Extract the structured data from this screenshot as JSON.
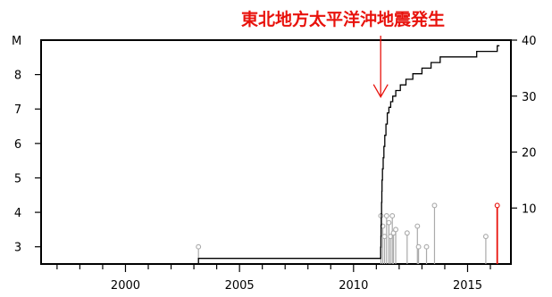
{
  "chart_data": {
    "type": "line",
    "title": "",
    "annotation": {
      "text": "東北地方太平洋沖地震発生",
      "x": 2011.19,
      "y": 7.3,
      "color": "#e8120c"
    },
    "xlabel": "",
    "ylabel_left": "M",
    "xlim": [
      1996.3,
      2016.9
    ],
    "ylim_left": [
      2.5,
      9.0
    ],
    "ylim_right": [
      0,
      40
    ],
    "x_ticks": [
      2000,
      2005,
      2010,
      2015
    ],
    "y_ticks_left": [
      3,
      4,
      5,
      6,
      7,
      8
    ],
    "y_ticks_right": [
      10,
      20,
      30,
      40
    ],
    "grid": false,
    "series": [
      {
        "axis": "right",
        "style": "step",
        "color": "#000000",
        "x": [
          1996.3,
          2003.2,
          2011.19,
          2011.2,
          2011.21,
          2011.22,
          2011.23,
          2011.24,
          2011.25,
          2011.27,
          2011.3,
          2011.33,
          2011.37,
          2011.42,
          2011.48,
          2011.55,
          2011.63,
          2011.72,
          2011.85,
          2012.05,
          2012.3,
          2012.6,
          2013.0,
          2013.4,
          2013.8,
          2014.4,
          2015.4,
          2016.3,
          2016.4
        ],
        "y": [
          0,
          1,
          3,
          5,
          7,
          9,
          11,
          13,
          15,
          17,
          19,
          21,
          23,
          25,
          27,
          28,
          29,
          30,
          31,
          32,
          33,
          34,
          35,
          36,
          37,
          37,
          38,
          39,
          39
        ]
      },
      {
        "axis": "left",
        "style": "stem",
        "color": "#aaaaaa",
        "x": [
          2003.2,
          2011.2,
          2011.28,
          2011.36,
          2011.45,
          2011.55,
          2011.62,
          2011.7,
          2011.75,
          2011.85,
          2012.35,
          2012.8,
          2012.85,
          2013.2,
          2013.55,
          2015.8
        ],
        "y": [
          3.0,
          3.9,
          3.6,
          3.3,
          3.9,
          3.7,
          3.3,
          3.9,
          3.4,
          3.5,
          3.4,
          3.6,
          3.0,
          3.0,
          4.2,
          3.3
        ]
      },
      {
        "axis": "left",
        "style": "stem",
        "color": "#e8120c",
        "x": [
          2016.3
        ],
        "y": [
          4.2
        ]
      }
    ]
  }
}
